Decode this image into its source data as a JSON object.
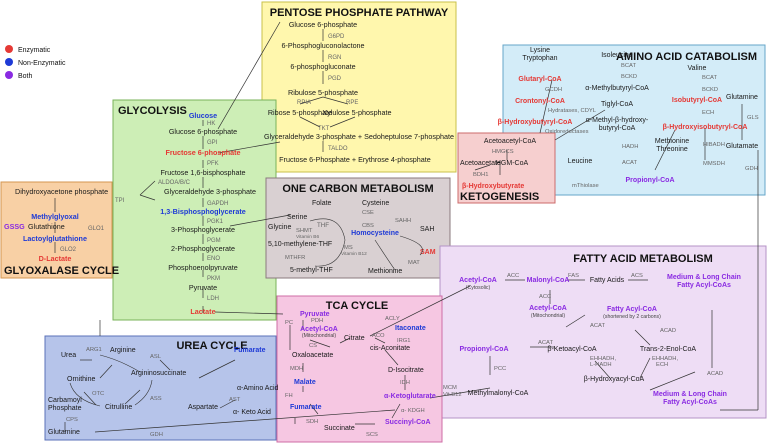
{
  "legend": {
    "items": [
      {
        "label": "Enzymatic",
        "color": "#e53935"
      },
      {
        "label": "Non-Enzymatic",
        "color": "#1e3ad6"
      },
      {
        "label": "Both",
        "color": "#8a2be2"
      }
    ]
  },
  "colors": {
    "text": "#1a1a1a",
    "enzyme": "#666666",
    "red": "#e53935",
    "blue": "#1e3ad6",
    "purple": "#8a2be2",
    "glycolysis_bg": "#cdeeb6",
    "ppp_bg": "#fff7ad",
    "aa_bg": "#d3ecf8",
    "keto_bg": "#f6cfcf",
    "one_carbon_bg": "#d9d0d2",
    "glyoxalase_bg": "#f8d0a5",
    "fatty_bg": "#eeddf5",
    "tca_bg": "#f6c7e2",
    "urea_bg": "#b6c4ea"
  },
  "panels": {
    "ppp": "PENTOSE PHOSPHATE PATHWAY",
    "glycolysis": "GLYCOLYSIS",
    "aa": "AMINO ACID CATABOLISM",
    "one_carbon": "ONE CARBON METABOLISM",
    "ketogenesis": "KETOGENESIS",
    "glyoxalase": "GLYOXALASE CYCLE",
    "fatty": "FATTY ACID METABOLISM",
    "tca": "TCA CYCLE",
    "urea": "UREA CYCLE"
  },
  "ppp": {
    "g6p": "Glucose 6-phosphate",
    "g6pd": "G6PD",
    "pgl": "6-Phosphogluconolactone",
    "rgn": "RGN",
    "pg": "6-phosphogluconate",
    "pgd": "PGD",
    "ru5p": "Ribulose 5-phosphate",
    "rpia": "RPIA",
    "rpe": "RPE",
    "r5p": "Ribose 5-phosphate",
    "x5p": "Xylulose 5-phosphate",
    "tkt": "TKT",
    "g3p_s7p": "Glyceraldehyde 3-phosphate + Sedoheptulose 7-phosphate",
    "taldo": "TALDO",
    "f6p_e4p": "Fructose 6-Phosphate + Erythrose 4-phosphate"
  },
  "glycolysis": {
    "glucose": "Glucose",
    "hk": "HK",
    "g6p": "Glucose 6-phosphate",
    "gpi": "GPI",
    "f6p": "Fructose 6-phosphate",
    "pfk": "PFK",
    "f16bp": "Fructose 1,6-bisphosphate",
    "aldoa": "ALDOA/B/C",
    "dhap": "Dihydroxyacetone phosphate",
    "tpi": "TPI",
    "g3p": "Glyceraldehyde 3-phosphate",
    "gapdh": "GAPDH",
    "bpg": "1,3-Bisphosphoglycerate",
    "pgk1": "PGK1",
    "pg3": "3-Phosphoglycerate",
    "pgm": "PGM",
    "pg2": "2-Phosphoglycerate",
    "eno": "ENO",
    "pep": "Phosphoenolpyruvate",
    "pkm": "PKM",
    "pyruvate": "Pyruvate",
    "ldh": "LDH",
    "lactate": "Lactate"
  },
  "glyoxalase": {
    "gssg": "GSSG",
    "methylglyoxal": "Methylglyoxal",
    "glutathione": "Glutathione",
    "glo1": "GLO1",
    "lactoylglutathione": "Lactoylglutathione",
    "glo2": "GLO2",
    "d_lactate": "D-Lactate"
  },
  "one_carbon": {
    "folate": "Folate",
    "serine": "Serine",
    "thf": "THF",
    "glycine": "Glycine",
    "shmt": "SHMT",
    "vitb6": "Vitamin B6",
    "mthf10": "5,10-methylene-THF",
    "mthfr": "MTHFR",
    "mthf5": "5-methyl-THF",
    "cysteine": "Cysteine",
    "cse": "CSE",
    "cbs": "CBS",
    "homocysteine": "Homocysteine",
    "sahh": "SAHH",
    "sah": "SAH",
    "ms": "MS",
    "vitb12": "Vitamin B12",
    "methionine": "Methionine",
    "mat": "MAT",
    "sam": "SAM"
  },
  "aa": {
    "lysine": "Lysine",
    "tryptophan": "Tryptophan",
    "glutaryl": "Glutaryl-CoA",
    "gcdh": "GCDH",
    "crotonyl": "Crontonyl-CoA",
    "hydratases": "Hydratases, CDYL",
    "hbcoa": "β-Hydroxybutyryl-CoA",
    "oxidoreductases": "Oxidoreductases",
    "isoleucine": "Isoleucine",
    "bcat1": "BCAT",
    "bckd1": "BCKD",
    "mbcoa": "α-Methylbutyryl-CoA",
    "tiglyl": "Tiglyl-CoA",
    "mhbcoa1": "α-Methyl-β-hydroxy-",
    "mhbcoa2": "butyryl-CoA",
    "hadh": "HADH",
    "valine": "Valine",
    "bcat2": "BCAT",
    "bckd2": "BCKD",
    "isobutyryl": "Isobutyryl-CoA",
    "ech": "ECH",
    "hibcoa": "β-Hydroxyisobutyryl-CoA",
    "methionine": "Methionine",
    "hibadh": "HIBADH",
    "threonine": "Threonine",
    "mmsdh": "MMSDH",
    "propionyl": "Propionyl-CoA",
    "glutamine": "Glutamine",
    "gls": "GLS",
    "glutamate": "Glutamate",
    "gdh": "GDH",
    "leucine": "Leucine"
  },
  "ketogenesis": {
    "acetoacetyl": "Acetoacetyl-CoA",
    "hmgcs": "HMGCS",
    "acetoacetate": "Acetoacetate",
    "hmg": "HGM-CoA",
    "bdh1": "BDH1",
    "hb": "β-Hydroxybutyrate",
    "acat": "ACAT",
    "mthiolase": "mThiolase"
  },
  "tca": {
    "pyruvate": "Pyruvate",
    "pdh": "PDH",
    "pc": "PC",
    "acetyl": "Acetyl-CoA",
    "mito": "(Mitochondrial)",
    "citrate": "Citrate",
    "acly": "ACLY",
    "cs": "CS",
    "aco": "ACO",
    "itaconate": "Itaconate",
    "irg1": "IRG1",
    "oxaloacetate": "Oxaloacetate",
    "cis_aconitate": "cis-Aconitate",
    "mdh": "MDH",
    "malate": "Malate",
    "d_isocitrate": "D-Isocitrate",
    "idh": "IDH",
    "fh": "FH",
    "fumarate": "Fumarate",
    "akg": "α-Ketoglutarate",
    "sdh": "SDH",
    "kdgh": "α- KDGH",
    "succinyl": "Succinyl-CoA",
    "succinate": "Succinate",
    "scs": "SCS"
  },
  "urea": {
    "arg1": "ARG1",
    "urea": "Urea",
    "arginine": "Arginine",
    "asl": "ASL",
    "ornithine": "Ornithine",
    "argininosuccinate": "Argininosuccinate",
    "fumarate": "Fumarate",
    "otc": "OTC",
    "citrulline": "Citrulline",
    "ass": "ASS",
    "aspartate": "Aspartate",
    "ast": "AST",
    "aa_acid": "α-Amino Acid",
    "keto_acid": "α- Keto Acid",
    "carbamoyl1": "Carbamoyl",
    "carbamoyl2": "Phosphate",
    "cps": "CPS",
    "glutamine": "Glutamine",
    "gdh": "GDH"
  },
  "fatty": {
    "acetyl": "Acetyl-CoA",
    "cytosolic": "(Cytosolic)",
    "acc1": "ACC",
    "malonyl": "Malonyl-CoA",
    "fas": "FAS",
    "fatty_acids": "Fatty Acids",
    "acs": "ACS",
    "mlc1": "Medium & Long Chain",
    "mlc2": "Fatty Acyl-CoAs",
    "acc2": "ACC",
    "acetyl_m": "Acetyl-CoA",
    "mito": "(Mitochondrial)",
    "fatty_acyl": "Fatty Acyl-CoA",
    "shortened": "(shortened by 2 carbons)",
    "acat": "ACAT",
    "acad1": "ACAD",
    "propionyl": "Propionyl-CoA",
    "acat2": "ACAT",
    "bketo": "β-Ketoacyl-CoA",
    "trans": "Trans-2-Enol-CoA",
    "ehhadh1": "EHHADH,",
    "ehhadh2": "L-HADH",
    "ehhadh3": "EHHADH,",
    "ech": "ECH",
    "pcc": "PCC",
    "bhydroxy": "β-Hydroxyacyl-CoA",
    "acad2": "ACAD",
    "mcm": "MCM",
    "vitb12": "Vit.B12",
    "methylmalonyl": "Methylmalonyl-CoA",
    "mlc3": "Medium & Long Chain",
    "mlc4": "Fatty Acyl-CoAs"
  }
}
